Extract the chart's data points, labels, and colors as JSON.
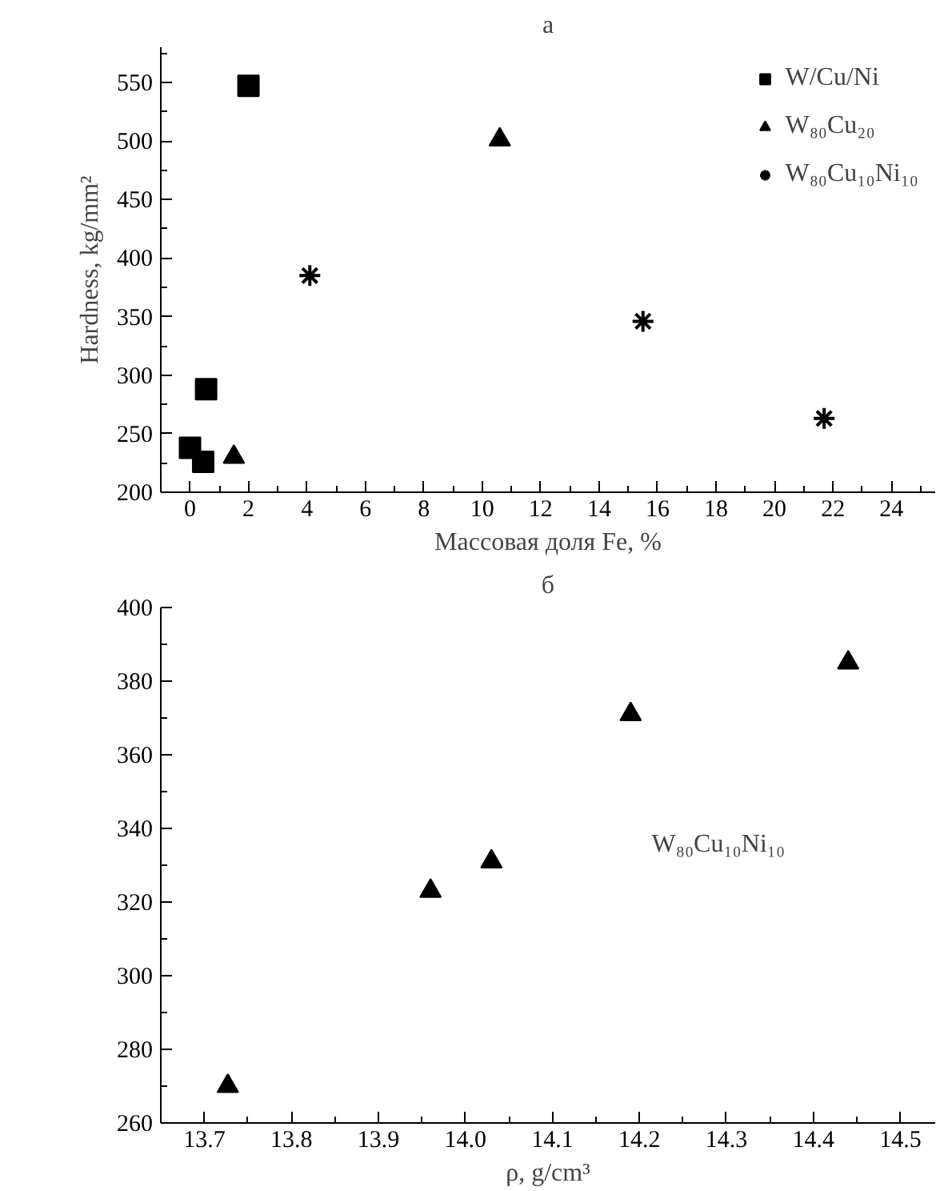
{
  "chart_data": [
    {
      "type": "scatter",
      "title": "а",
      "xlabel": "Массовая доля Fe, %",
      "ylabel": "Hardness, kg/mm²",
      "legend": "top right",
      "grid": false,
      "xlim": [
        -1,
        25.5
      ],
      "ylim": [
        200,
        580
      ],
      "xticks": [
        0,
        {
          "value": 1,
          "label": null
        },
        2,
        {
          "value": 3,
          "label": null
        },
        4,
        {
          "value": 5,
          "label": null
        },
        6,
        {
          "value": 7,
          "label": null
        },
        8,
        {
          "value": 9,
          "label": null
        },
        10,
        {
          "value": 11,
          "label": null
        },
        12,
        {
          "value": 13,
          "label": null
        },
        14,
        {
          "value": 15,
          "label": null
        },
        16,
        {
          "value": 17,
          "label": null
        },
        18,
        {
          "value": 19,
          "label": null
        },
        20,
        {
          "value": 21,
          "label": null
        },
        22,
        {
          "value": 23,
          "label": null
        },
        24,
        {
          "value": 25,
          "label": null
        }
      ],
      "yticks": [
        200,
        {
          "value": 225,
          "label": null
        },
        250,
        {
          "value": 275,
          "label": null
        },
        300,
        {
          "value": 325,
          "label": null
        },
        350,
        {
          "value": 375,
          "label": null
        },
        400,
        {
          "value": 425,
          "label": null
        },
        450,
        {
          "value": 475,
          "label": null
        },
        500,
        {
          "value": 525,
          "label": null
        },
        550,
        {
          "value": 575,
          "label": null
        }
      ],
      "series": [
        {
          "name": "W/Cu/Ni",
          "color": "#000000",
          "marker": "square",
          "x": [
            0,
            0.45,
            0.55,
            2
          ],
          "values": [
            238,
            226,
            288,
            547
          ]
        },
        {
          "name": "W₈₀Cu₂₀",
          "color": "#000000",
          "marker": "triangle",
          "x": [
            1.5,
            10.6
          ],
          "values": [
            230,
            501
          ]
        },
        {
          "name": "W₈₀Cu₁₀Ni₁₀",
          "color": "#000000",
          "marker": "cross",
          "x": [
            4.1,
            15.5,
            21.7
          ],
          "values": [
            385,
            346,
            263
          ]
        }
      ]
    },
    {
      "type": "scatter",
      "title": "б",
      "xlabel": "ρ, g/cm³",
      "grid": false,
      "annotations": [
        "W₈₀Cu₁₀Ni₁₀"
      ],
      "xlim": [
        13.65,
        14.54
      ],
      "ylim": [
        260,
        400
      ],
      "xticks": [
        {
          "value": 13.65,
          "label": null
        },
        13.7,
        {
          "value": 13.75,
          "label": null
        },
        13.8,
        {
          "value": 13.85,
          "label": null
        },
        13.9,
        {
          "value": 13.95,
          "label": null
        },
        {
          "value": 14.0,
          "label": "14.0"
        },
        {
          "value": 14.05,
          "label": null
        },
        14.1,
        {
          "value": 14.15,
          "label": null
        },
        14.2,
        {
          "value": 14.25,
          "label": null
        },
        14.3,
        {
          "value": 14.35,
          "label": null
        },
        14.4,
        {
          "value": 14.45,
          "label": null
        },
        14.5
      ],
      "yticks": [
        260,
        {
          "value": 270,
          "label": null
        },
        280,
        {
          "value": 290,
          "label": null
        },
        300,
        {
          "value": 310,
          "label": null
        },
        320,
        {
          "value": 330,
          "label": null
        },
        340,
        {
          "value": 350,
          "label": null
        },
        360,
        {
          "value": 370,
          "label": null
        },
        380,
        {
          "value": 390,
          "label": null
        },
        400
      ],
      "series": [
        {
          "color": "#000000",
          "marker": "triangle",
          "x": [
            13.727,
            13.96,
            14.03,
            14.19,
            14.44
          ],
          "values": [
            270,
            323,
            331,
            371,
            385
          ]
        }
      ]
    }
  ]
}
